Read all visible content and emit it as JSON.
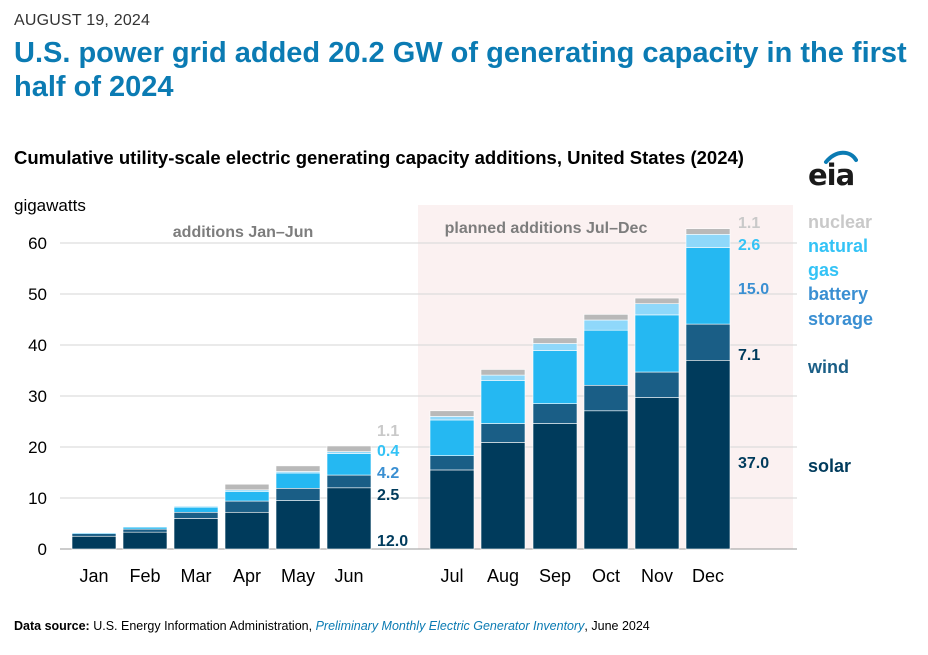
{
  "date": "AUGUST 19, 2024",
  "headline": "U.S. power grid added 20.2 GW of generating capacity in the first half of 2024",
  "logo": "eia",
  "footer": {
    "label": "Data source:",
    "org": "U.S. Energy Information Administration,",
    "publication": "Preliminary Monthly Electric Generator Inventory",
    "date": ", June 2024"
  },
  "colors": {
    "solar": "#003b5c",
    "wind": "#1a5e86",
    "battery_storage": "#25b8f2",
    "natural_gas": "#8fd8fa",
    "nuclear": "#b9b9b9",
    "planned_shade": "#fbf1f1",
    "legend_battery": "#3a8fd2",
    "legend_gas": "#34c3f6",
    "legend_nuclear": "#c9c9c9"
  },
  "chart_data": {
    "type": "bar",
    "stacked": true,
    "title": "Cumulative utility-scale electric generating capacity additions, United States (2024)",
    "ylabel": "gigawatts",
    "ylim": [
      0,
      60
    ],
    "yticks": [
      0,
      10,
      20,
      30,
      40,
      50,
      60
    ],
    "categories": [
      "Jan",
      "Feb",
      "Mar",
      "Apr",
      "May",
      "Jun",
      "Jul",
      "Aug",
      "Sep",
      "Oct",
      "Nov",
      "Dec"
    ],
    "regions": [
      {
        "label": "additions Jan–Jun",
        "categories": [
          "Jan",
          "Feb",
          "Mar",
          "Apr",
          "May",
          "Jun"
        ]
      },
      {
        "label": "planned additions Jul–Dec",
        "categories": [
          "Jul",
          "Aug",
          "Sep",
          "Oct",
          "Nov",
          "Dec"
        ]
      }
    ],
    "series": [
      {
        "name": "solar",
        "key": "solar",
        "values": [
          2.5,
          3.3,
          6.0,
          7.2,
          9.5,
          12.0,
          15.5,
          20.9,
          24.6,
          27.1,
          29.7,
          37.0
        ]
      },
      {
        "name": "wind",
        "key": "wind",
        "values": [
          0.5,
          0.6,
          1.2,
          2.2,
          2.4,
          2.5,
          2.8,
          3.7,
          3.9,
          5.0,
          5.0,
          7.1
        ]
      },
      {
        "name": "battery storage",
        "key": "battery_storage",
        "values": [
          0.2,
          0.4,
          1.0,
          1.9,
          3.0,
          4.2,
          7.0,
          8.4,
          10.4,
          10.8,
          11.2,
          15.0
        ]
      },
      {
        "name": "natural gas",
        "key": "natural_gas",
        "values": [
          0.1,
          0.1,
          0.2,
          0.3,
          0.3,
          0.4,
          0.7,
          1.1,
          1.4,
          2.0,
          2.2,
          2.6
        ]
      },
      {
        "name": "nuclear",
        "key": "nuclear",
        "values": [
          0,
          0,
          0,
          1.1,
          1.1,
          1.1,
          1.1,
          1.1,
          1.1,
          1.1,
          1.1,
          1.1
        ]
      }
    ],
    "data_labels": {
      "Jun": {
        "solar": "12.0",
        "wind": "2.5",
        "battery_storage": "4.2",
        "natural_gas": "0.4",
        "nuclear": "1.1"
      },
      "Dec": {
        "solar": "37.0",
        "wind": "7.1",
        "battery_storage": "15.0",
        "natural_gas": "2.6",
        "nuclear": "1.1"
      }
    },
    "legend": [
      {
        "text": "nuclear",
        "key": "legend_nuclear"
      },
      {
        "text": "natural",
        "key": "legend_gas"
      },
      {
        "text": "gas",
        "key": "legend_gas"
      },
      {
        "text": "battery",
        "key": "legend_battery"
      },
      {
        "text": "storage",
        "key": "legend_battery"
      },
      {
        "text": "wind",
        "key": "wind"
      },
      {
        "text": "solar",
        "key": "solar"
      }
    ]
  }
}
